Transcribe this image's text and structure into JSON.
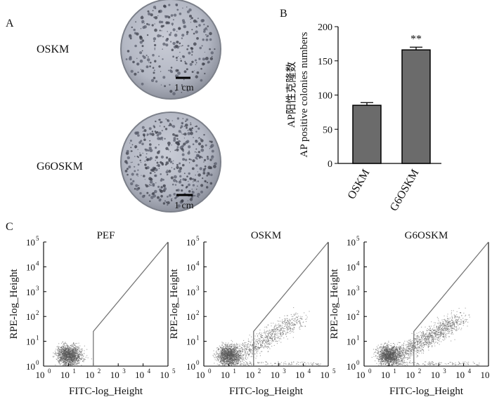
{
  "panels": {
    "a": {
      "label": "A",
      "rows": [
        {
          "name": "OSKM",
          "scale": "1 cm"
        },
        {
          "name": "G6OSKM",
          "scale": "1 cm"
        }
      ]
    },
    "b": {
      "label": "B"
    },
    "c": {
      "label": "C",
      "plots": [
        {
          "title": "PEF",
          "cluster": "neg"
        },
        {
          "title": "OSKM",
          "cluster": "pos"
        },
        {
          "title": "G6OSKM",
          "cluster": "pos_strong"
        }
      ],
      "xlabel": "FITC-log_Height",
      "ylabel": "RPE-log_Height",
      "tick_base": "10",
      "tick_exps": [
        "0",
        "1",
        "2",
        "3",
        "4",
        "5"
      ]
    }
  },
  "chart_data": [
    {
      "type": "bar",
      "categories": [
        "OSKM",
        "G6OSKM"
      ],
      "values": [
        85,
        166
      ],
      "errors": [
        4,
        4
      ],
      "annotations": [
        "",
        "**"
      ],
      "ylabel_cn": "AP阳性克隆数",
      "ylabel": "AP positive colonies numbers",
      "ylim": [
        0,
        200
      ],
      "yticks": [
        0,
        50,
        100,
        150,
        200
      ],
      "bar_color": "#6b6b6b"
    },
    {
      "type": "scatter",
      "title": "PEF",
      "xlabel": "FITC-log_Height",
      "ylabel": "RPE-log_Height",
      "x_scale": "log",
      "xlim": [
        1,
        100000
      ],
      "ylim": [
        1,
        100000
      ],
      "gate": [
        [
          100,
          1
        ],
        [
          100,
          25
        ],
        [
          100000,
          100000
        ]
      ]
    },
    {
      "type": "scatter",
      "title": "OSKM",
      "xlabel": "FITC-log_Height",
      "ylabel": "RPE-log_Height",
      "x_scale": "log",
      "xlim": [
        1,
        100000
      ],
      "ylim": [
        1,
        100000
      ],
      "gate": [
        [
          100,
          1
        ],
        [
          100,
          25
        ],
        [
          100000,
          100000
        ]
      ]
    },
    {
      "type": "scatter",
      "title": "G6OSKM",
      "xlabel": "FITC-log_Height",
      "ylabel": "RPE-log_Height",
      "x_scale": "log",
      "xlim": [
        1,
        100000
      ],
      "ylim": [
        1,
        100000
      ],
      "gate": [
        [
          100,
          1
        ],
        [
          100,
          25
        ],
        [
          100000,
          100000
        ]
      ]
    }
  ]
}
